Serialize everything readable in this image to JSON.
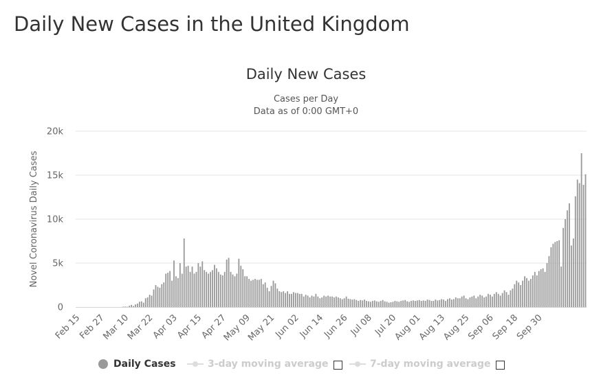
{
  "page": {
    "title": "Daily New Cases in the United Kingdom"
  },
  "chart_data": {
    "type": "bar",
    "title": "Daily New Cases",
    "subtitle": "Cases per Day",
    "subtitle2": "Data as of 0:00 GMT+0",
    "ylabel": "Novel Coronavirus Daily Cases",
    "xlabel": "",
    "ylim": [
      0,
      20000
    ],
    "yticks": [
      {
        "value": 0,
        "label": "0"
      },
      {
        "value": 5000,
        "label": "5k"
      },
      {
        "value": 10000,
        "label": "10k"
      },
      {
        "value": 15000,
        "label": "15k"
      },
      {
        "value": 20000,
        "label": "20k"
      }
    ],
    "xticks": [
      "Feb 15",
      "Feb 27",
      "Mar 10",
      "Mar 22",
      "Apr 03",
      "Apr 15",
      "Apr 27",
      "May 09",
      "May 21",
      "Jun 02",
      "Jun 14",
      "Jun 26",
      "Jul 08",
      "Jul 20",
      "Aug 01",
      "Aug 13",
      "Aug 25",
      "Sep 06",
      "Sep 18",
      "Sep 30"
    ],
    "series": [
      {
        "name": "Daily Cases",
        "color": "#999999",
        "x_start": "Feb 15",
        "values": [
          0,
          0,
          0,
          0,
          0,
          0,
          0,
          0,
          0,
          0,
          0,
          0,
          0,
          0,
          0,
          0,
          0,
          0,
          0,
          0,
          0,
          0,
          0,
          50,
          60,
          40,
          150,
          250,
          120,
          300,
          400,
          600,
          650,
          500,
          1000,
          1100,
          1400,
          1300,
          2000,
          2500,
          2300,
          2200,
          2600,
          2800,
          3800,
          3900,
          4100,
          3000,
          5300,
          3500,
          3300,
          5000,
          3800,
          7800,
          4600,
          4700,
          4000,
          4600,
          3800,
          4000,
          5000,
          4600,
          5200,
          4200,
          4000,
          3800,
          4000,
          4200,
          4800,
          4400,
          4000,
          3700,
          3600,
          4000,
          5400,
          5600,
          4000,
          3700,
          3500,
          3800,
          5500,
          4700,
          4300,
          3500,
          3500,
          3200,
          3000,
          3100,
          3200,
          3100,
          3100,
          3200,
          2600,
          2800,
          2200,
          1800,
          2400,
          3000,
          2700,
          2100,
          1800,
          1700,
          1800,
          1600,
          1800,
          1500,
          1500,
          1700,
          1600,
          1600,
          1500,
          1500,
          1200,
          1400,
          1300,
          1100,
          1300,
          1200,
          1500,
          1200,
          1000,
          1100,
          1300,
          1200,
          1300,
          1200,
          1200,
          1100,
          1200,
          1100,
          1000,
          900,
          1000,
          1200,
          950,
          900,
          850,
          900,
          800,
          700,
          800,
          750,
          850,
          700,
          650,
          600,
          700,
          750,
          650,
          600,
          700,
          800,
          650,
          600,
          500,
          550,
          600,
          700,
          650,
          600,
          700,
          750,
          800,
          650,
          600,
          700,
          750,
          700,
          750,
          800,
          700,
          750,
          700,
          850,
          800,
          700,
          700,
          850,
          750,
          800,
          900,
          850,
          700,
          900,
          1000,
          850,
          900,
          1100,
          1000,
          1000,
          1200,
          1300,
          1000,
          900,
          1100,
          1200,
          1300,
          1000,
          1200,
          1400,
          1300,
          1100,
          1200,
          1500,
          1400,
          1200,
          1500,
          1700,
          1500,
          1300,
          1600,
          1900,
          1700,
          1400,
          1900,
          2100,
          2600,
          3000,
          2800,
          2500,
          3000,
          3500,
          3300,
          3000,
          3200,
          3600,
          4000,
          3600,
          4100,
          4300,
          4400,
          4000,
          5000,
          5800,
          6800,
          7200,
          7400,
          7500,
          7600,
          4600,
          9000,
          10000,
          11000,
          11800,
          7000,
          7800,
          12600,
          14500,
          14100,
          17500,
          13900,
          15100
        ]
      },
      {
        "name": "3-day moving average",
        "visible": false
      },
      {
        "name": "7-day moving average",
        "visible": false
      }
    ],
    "legend_position": "bottom"
  },
  "legend": {
    "daily_cases": "Daily Cases",
    "ma3": "3-day moving average",
    "ma7": "7-day moving average"
  }
}
